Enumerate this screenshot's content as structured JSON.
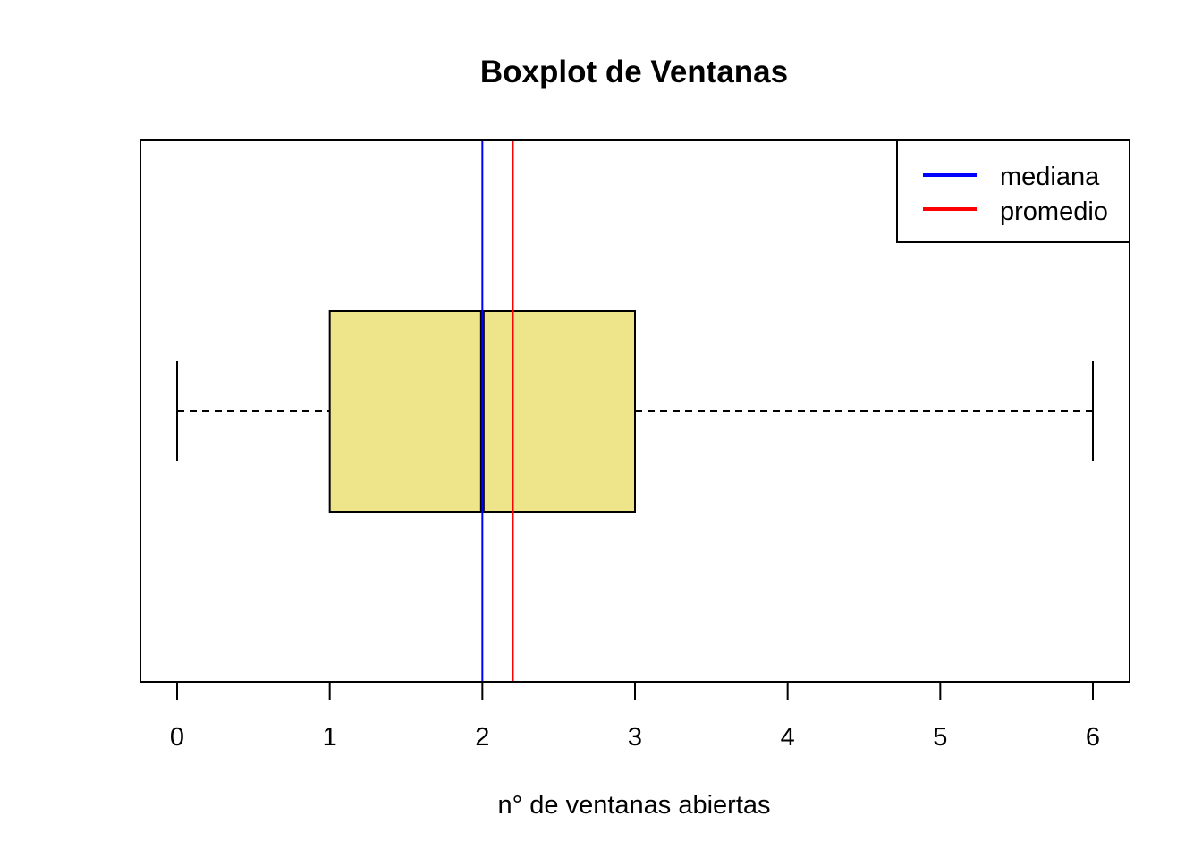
{
  "chart_data": {
    "type": "boxplot",
    "orientation": "horizontal",
    "title": "Boxplot de Ventanas",
    "xlabel": "n° de ventanas abiertas",
    "ylabel": "",
    "xlim": [
      0,
      6
    ],
    "x_ticks": [
      0,
      1,
      2,
      3,
      4,
      5,
      6
    ],
    "x_tick_labels": [
      "0",
      "1",
      "2",
      "3",
      "4",
      "5",
      "6"
    ],
    "box": {
      "min": 0,
      "q1": 1,
      "median": 2,
      "q3": 3,
      "max": 6,
      "fill_color": "#EEE58B",
      "border_color": "#000000"
    },
    "reference_lines": [
      {
        "name": "mediana",
        "value": 2,
        "color": "#0000FF"
      },
      {
        "name": "promedio",
        "value": 2.2,
        "color": "#FF0000"
      }
    ],
    "legend": {
      "position": "top-right",
      "entries": [
        {
          "label": "mediana",
          "color": "#0000FF"
        },
        {
          "label": "promedio",
          "color": "#FF0000"
        }
      ]
    },
    "grid": false
  }
}
